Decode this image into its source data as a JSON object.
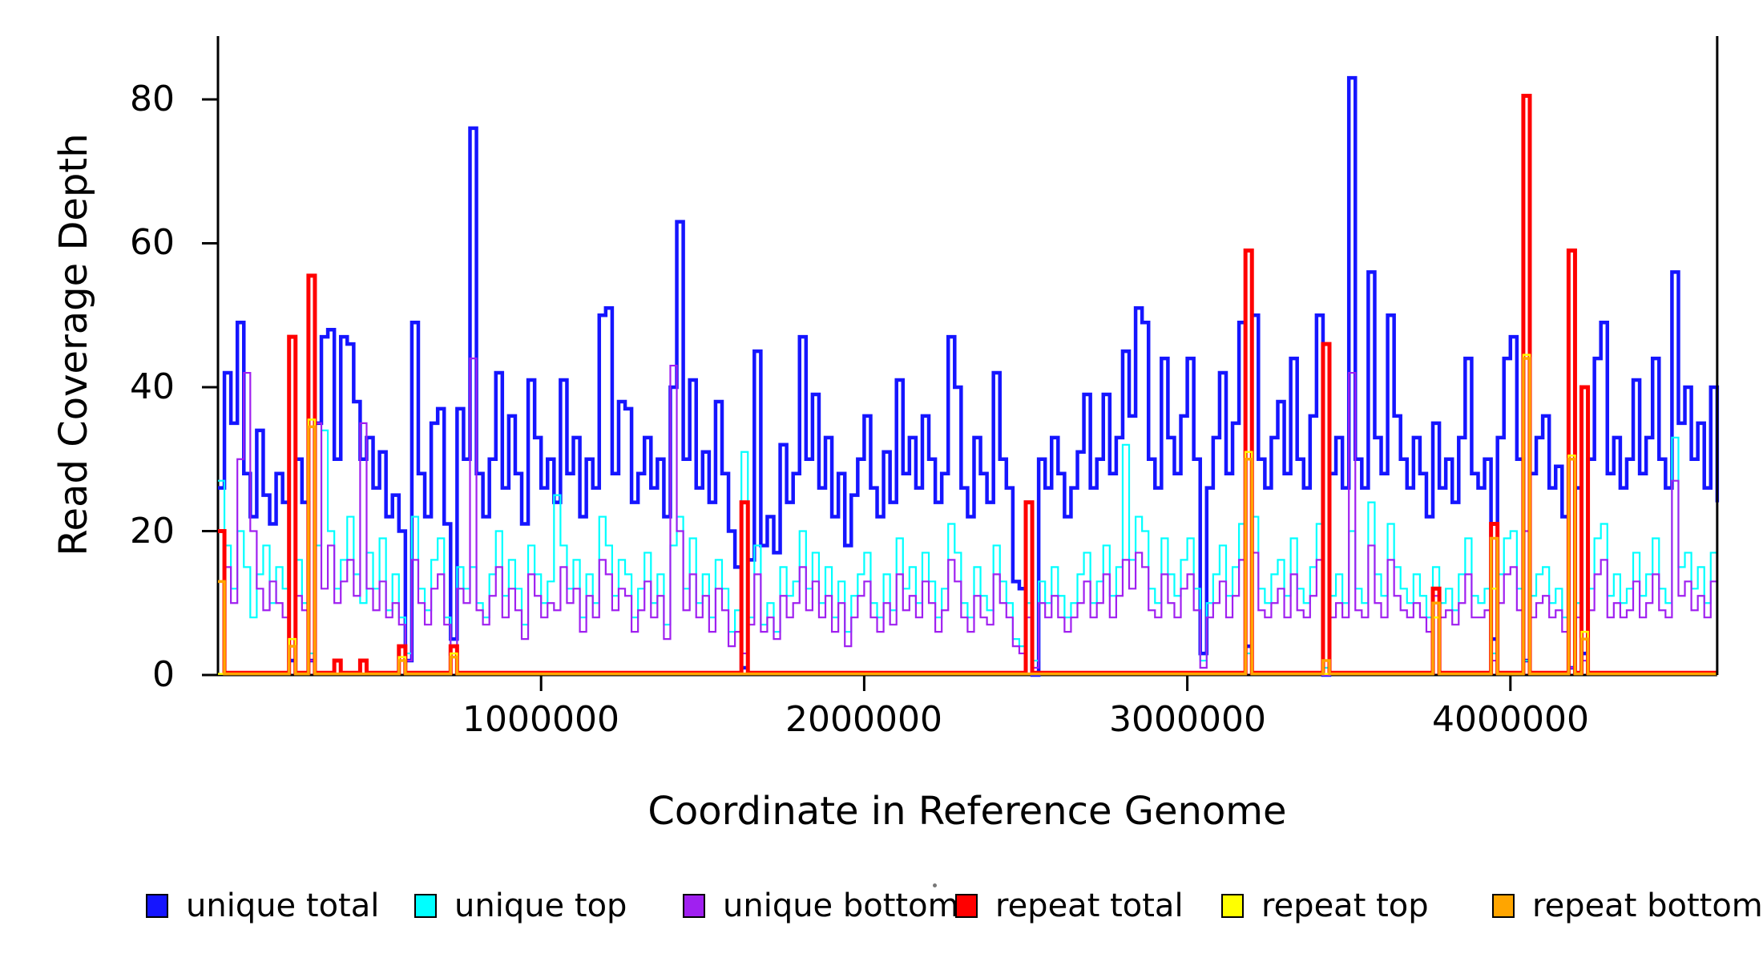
{
  "figure": {
    "y_axis_title": "Read Coverage Depth",
    "x_axis_title": "Coordinate in Reference Genome",
    "y_tick_labels": [
      "0",
      "20",
      "40",
      "60",
      "80"
    ],
    "x_tick_labels": [
      "1000000",
      "2000000",
      "3000000",
      "4000000"
    ]
  },
  "chart_data": {
    "type": "line",
    "step_style": true,
    "title": "",
    "xlabel": "Coordinate in Reference Genome",
    "ylabel": "Read Coverage Depth",
    "xlim": [
      0,
      4640000
    ],
    "ylim": [
      0,
      85
    ],
    "grid": false,
    "legend_position": "bottom",
    "x_tick_values": [
      1000000,
      2000000,
      3000000,
      4000000
    ],
    "y_tick_values": [
      0,
      20,
      40,
      60,
      80
    ],
    "bin_size": 20000,
    "n_bins": 233,
    "axis_color": "#000000",
    "series": [
      {
        "name": "unique total",
        "color": "#1515ff",
        "lwd": 4.5,
        "values": [
          26,
          42,
          35,
          49,
          28,
          22,
          34,
          25,
          21,
          28,
          24,
          2,
          30,
          24,
          2,
          35,
          47,
          48,
          30,
          47,
          46,
          38,
          30,
          33,
          26,
          31,
          22,
          25,
          20,
          2,
          49,
          28,
          22,
          35,
          37,
          21,
          5,
          37,
          30,
          76,
          28,
          22,
          30,
          42,
          26,
          36,
          28,
          21,
          41,
          33,
          26,
          30,
          24,
          41,
          28,
          33,
          22,
          30,
          26,
          50,
          51,
          28,
          38,
          37,
          24,
          28,
          33,
          26,
          30,
          22,
          40,
          63,
          30,
          41,
          26,
          31,
          24,
          38,
          28,
          20,
          15,
          1,
          16,
          45,
          18,
          22,
          17,
          32,
          24,
          28,
          47,
          30,
          39,
          26,
          33,
          22,
          28,
          18,
          25,
          30,
          36,
          26,
          22,
          31,
          24,
          41,
          28,
          33,
          26,
          36,
          30,
          24,
          28,
          47,
          40,
          26,
          22,
          33,
          28,
          24,
          42,
          30,
          26,
          13,
          12,
          24,
          0,
          30,
          26,
          33,
          28,
          22,
          26,
          31,
          39,
          26,
          30,
          39,
          28,
          33,
          45,
          36,
          51,
          49,
          30,
          26,
          44,
          33,
          28,
          36,
          44,
          30,
          3,
          26,
          33,
          42,
          28,
          35,
          49,
          4,
          50,
          30,
          26,
          33,
          38,
          28,
          44,
          30,
          26,
          36,
          50,
          0,
          28,
          33,
          26,
          83,
          30,
          26,
          56,
          33,
          28,
          50,
          36,
          30,
          26,
          33,
          28,
          22,
          35,
          26,
          30,
          24,
          33,
          44,
          28,
          26,
          30,
          5,
          33,
          44,
          47,
          30,
          2,
          28,
          33,
          36,
          26,
          29,
          22,
          1,
          26,
          3,
          30,
          44,
          49,
          28,
          33,
          26,
          30,
          41,
          28,
          33,
          44,
          30,
          26,
          56,
          35,
          40,
          30,
          35,
          26,
          40,
          24
        ]
      },
      {
        "name": "unique top",
        "color": "#00ffff",
        "lwd": 2.2,
        "values": [
          27,
          18,
          12,
          20,
          15,
          8,
          14,
          18,
          10,
          15,
          12,
          5,
          16,
          10,
          3,
          18,
          34,
          20,
          12,
          16,
          22,
          14,
          10,
          17,
          12,
          19,
          9,
          14,
          8,
          3,
          22,
          12,
          9,
          16,
          19,
          8,
          4,
          15,
          12,
          15,
          10,
          8,
          14,
          20,
          11,
          16,
          12,
          7,
          18,
          14,
          10,
          13,
          25,
          18,
          12,
          16,
          8,
          14,
          10,
          22,
          18,
          11,
          16,
          14,
          8,
          12,
          17,
          10,
          14,
          7,
          18,
          22,
          12,
          19,
          10,
          14,
          8,
          16,
          12,
          6,
          9,
          31,
          8,
          18,
          7,
          10,
          6,
          15,
          11,
          13,
          20,
          12,
          17,
          10,
          15,
          8,
          13,
          6,
          11,
          14,
          17,
          10,
          8,
          14,
          9,
          19,
          12,
          15,
          10,
          17,
          13,
          8,
          12,
          21,
          17,
          10,
          8,
          15,
          11,
          9,
          18,
          13,
          10,
          5,
          4,
          10,
          2,
          13,
          10,
          15,
          11,
          8,
          10,
          14,
          17,
          10,
          13,
          18,
          11,
          15,
          32,
          16,
          22,
          20,
          12,
          10,
          19,
          14,
          11,
          16,
          19,
          12,
          2,
          10,
          14,
          18,
          11,
          15,
          21,
          3,
          22,
          12,
          10,
          14,
          16,
          11,
          19,
          12,
          10,
          15,
          21,
          1,
          11,
          14,
          10,
          20,
          12,
          10,
          24,
          14,
          11,
          21,
          15,
          12,
          10,
          14,
          11,
          8,
          15,
          10,
          12,
          9,
          14,
          19,
          11,
          10,
          12,
          3,
          14,
          19,
          20,
          12,
          2,
          11,
          14,
          15,
          10,
          12,
          8,
          1,
          10,
          2,
          12,
          19,
          21,
          11,
          14,
          10,
          12,
          17,
          11,
          14,
          19,
          12,
          10,
          33,
          15,
          17,
          12,
          15,
          10,
          17,
          10
        ]
      },
      {
        "name": "unique bottom",
        "color": "#a020f0",
        "lwd": 2.2,
        "values": [
          20,
          15,
          10,
          30,
          42,
          20,
          12,
          9,
          13,
          10,
          8,
          4,
          11,
          9,
          2,
          35,
          12,
          18,
          10,
          13,
          16,
          11,
          35,
          12,
          9,
          13,
          8,
          10,
          7,
          2,
          16,
          10,
          7,
          12,
          14,
          7,
          3,
          12,
          10,
          44,
          9,
          7,
          11,
          15,
          8,
          12,
          9,
          5,
          14,
          11,
          8,
          10,
          9,
          15,
          10,
          12,
          6,
          11,
          8,
          16,
          14,
          9,
          12,
          11,
          6,
          9,
          13,
          8,
          11,
          5,
          43,
          20,
          9,
          14,
          8,
          11,
          6,
          12,
          9,
          4,
          6,
          3,
          7,
          14,
          6,
          8,
          5,
          11,
          8,
          10,
          15,
          9,
          13,
          8,
          11,
          6,
          10,
          4,
          8,
          11,
          13,
          8,
          6,
          10,
          7,
          14,
          9,
          11,
          8,
          13,
          10,
          6,
          9,
          16,
          13,
          8,
          6,
          11,
          8,
          7,
          14,
          10,
          8,
          4,
          3,
          8,
          1,
          10,
          8,
          11,
          8,
          6,
          8,
          10,
          13,
          8,
          10,
          14,
          8,
          11,
          16,
          12,
          17,
          15,
          9,
          8,
          14,
          10,
          8,
          12,
          14,
          9,
          1,
          8,
          10,
          13,
          8,
          11,
          16,
          30,
          17,
          9,
          8,
          10,
          12,
          8,
          14,
          9,
          8,
          11,
          16,
          0,
          8,
          10,
          8,
          42,
          9,
          8,
          18,
          10,
          8,
          16,
          11,
          9,
          8,
          10,
          8,
          6,
          11,
          8,
          9,
          7,
          10,
          14,
          8,
          8,
          9,
          2,
          10,
          14,
          15,
          9,
          20,
          8,
          10,
          11,
          8,
          9,
          6,
          1,
          8,
          2,
          9,
          14,
          16,
          8,
          10,
          8,
          9,
          13,
          8,
          10,
          14,
          9,
          8,
          27,
          11,
          13,
          9,
          11,
          8,
          13,
          8
        ]
      },
      {
        "name": "repeat total",
        "color": "#ff0000",
        "lwd": 5,
        "baseline": 0.3,
        "spikes": {
          "0": 20,
          "11": 47,
          "14": 55.5,
          "18": 2,
          "22": 2,
          "28": 4,
          "36": 4,
          "81": 24,
          "125": 24,
          "159": 59,
          "171": 46,
          "188": 12,
          "197": 21,
          "202": 80.5,
          "209": 59,
          "211": 40
        }
      },
      {
        "name": "repeat top",
        "color": "#ffff00",
        "lwd": 2.5,
        "baseline": 0.15,
        "spikes": {
          "11": 5,
          "14": 35.5,
          "28": 2.5,
          "36": 3,
          "159": 31,
          "188": 8,
          "197": 12,
          "202": 44.5,
          "209": 30.5,
          "211": 6
        }
      },
      {
        "name": "repeat bottom",
        "color": "#ffa500",
        "lwd": 3.5,
        "baseline": 0.15,
        "spikes": {
          "0": 13,
          "11": 4,
          "14": 34.5,
          "28": 2,
          "36": 2.5,
          "159": 30,
          "171": 2,
          "188": 10,
          "197": 19,
          "202": 44,
          "209": 30,
          "211": 5
        }
      }
    ]
  }
}
